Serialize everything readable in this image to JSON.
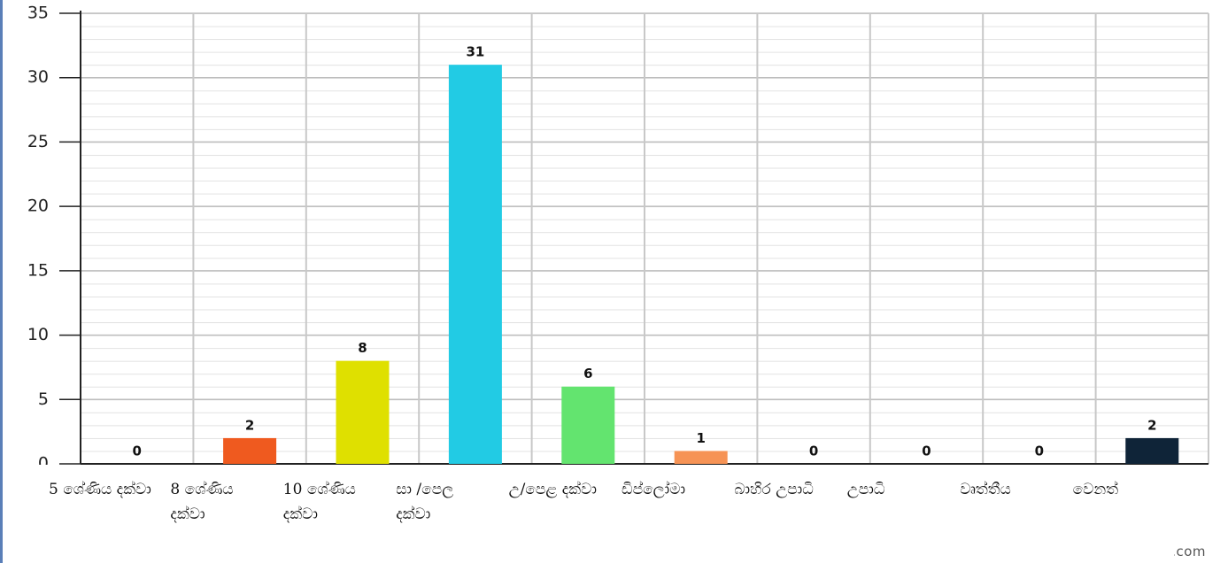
{
  "chart_data": {
    "type": "bar",
    "categories": [
      "5 ශේණිය දක්වා",
      "8 ශේණිය දක්වා",
      "10 ශේණිය දක්වා",
      "සා /පෙල දක්වා",
      "උ/පෙළ දක්වා",
      "ඩිප්ලෝමා",
      "බාහිර උපාධි",
      "උපාධි",
      "වෘත්තීය",
      "වෙනත්"
    ],
    "values": [
      0,
      2,
      8,
      31,
      6,
      1,
      0,
      0,
      0,
      2
    ],
    "colors": [
      "#1f3c5c",
      "#ef5a1f",
      "#dfe000",
      "#22cbe4",
      "#63e46f",
      "#f69355",
      "#1f3c5c",
      "#1f3c5c",
      "#1f3c5c",
      "#0f2438"
    ],
    "ylim": [
      0,
      35
    ],
    "yticks": [
      0,
      5,
      10,
      15,
      20,
      25,
      30,
      35
    ],
    "grid": true,
    "footer": "meta-chart.com"
  }
}
